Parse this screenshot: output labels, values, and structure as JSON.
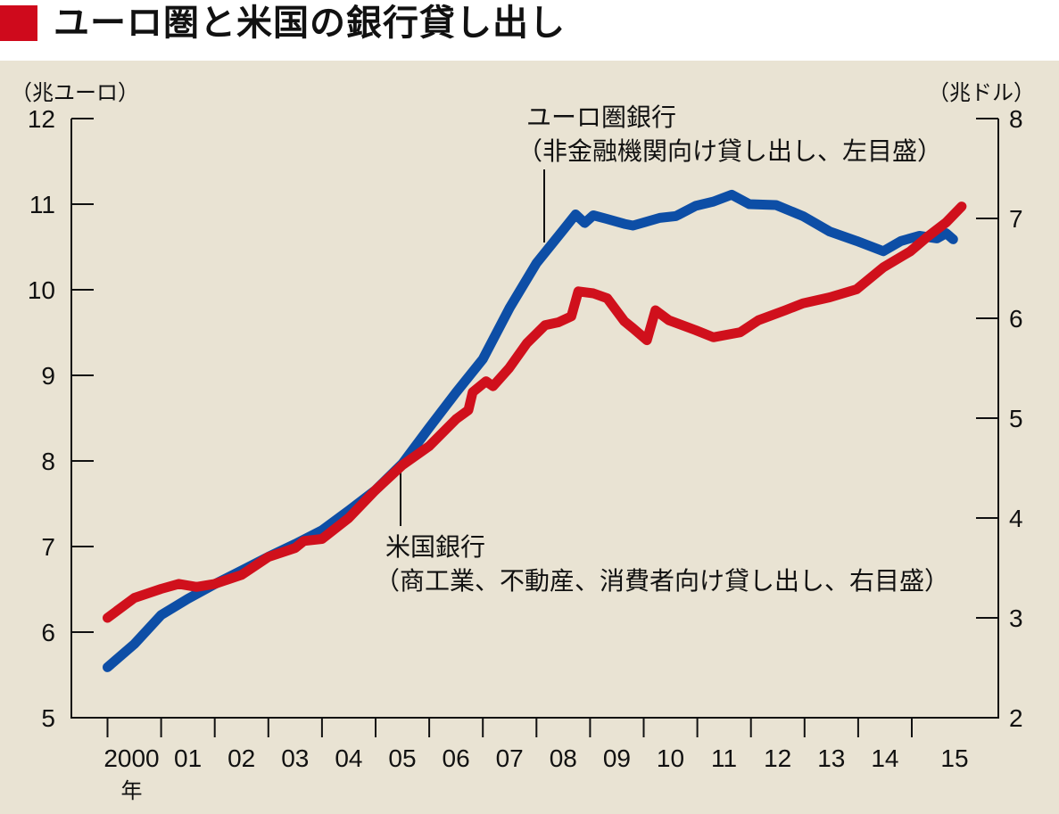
{
  "title": "ユーロ圏と米国の銀行貸し出し",
  "colors": {
    "accent": "#cf0a1c",
    "background": "#e9e3d3",
    "euro": "#0d4ea6",
    "us": "#d0101c"
  },
  "chart_data": {
    "type": "line",
    "title": "ユーロ圏と米国の銀行貸し出し",
    "xlabel": "年",
    "left_axis": {
      "unit_label": "（兆ユーロ）",
      "ylim": [
        5,
        12
      ],
      "ticks": [
        "5",
        "6",
        "7",
        "8",
        "9",
        "10",
        "11",
        "12"
      ]
    },
    "right_axis": {
      "unit_label": "（兆ドル）",
      "ylim": [
        2,
        8
      ],
      "ticks": [
        "2",
        "3",
        "4",
        "5",
        "6",
        "7",
        "8"
      ]
    },
    "x_ticks": [
      "2000",
      "01",
      "02",
      "03",
      "04",
      "05",
      "06",
      "07",
      "08",
      "09",
      "10",
      "11",
      "12",
      "13",
      "14",
      "15"
    ],
    "x_tick_suffix": "年",
    "xlim": [
      2000,
      2016.65
    ],
    "grid": false,
    "series": [
      {
        "name": "ユーロ圏銀行",
        "label_detail": "（非金融機関向け貸し出し、左目盛）",
        "axis": "left",
        "color": "#0d4ea6",
        "points": [
          [
            2000.0,
            5.59
          ],
          [
            2000.5,
            5.86
          ],
          [
            2001.0,
            6.2
          ],
          [
            2001.5,
            6.39
          ],
          [
            2002.0,
            6.56
          ],
          [
            2002.5,
            6.72
          ],
          [
            2003.0,
            6.88
          ],
          [
            2003.5,
            7.03
          ],
          [
            2004.0,
            7.19
          ],
          [
            2004.5,
            7.42
          ],
          [
            2005.0,
            7.66
          ],
          [
            2005.5,
            7.97
          ],
          [
            2006.0,
            8.39
          ],
          [
            2006.5,
            8.8
          ],
          [
            2007.0,
            9.19
          ],
          [
            2007.5,
            9.79
          ],
          [
            2008.0,
            10.31
          ],
          [
            2008.5,
            10.7
          ],
          [
            2008.73,
            10.88
          ],
          [
            2008.9,
            10.78
          ],
          [
            2009.06,
            10.87
          ],
          [
            2009.3,
            10.83
          ],
          [
            2009.64,
            10.77
          ],
          [
            2009.8,
            10.75
          ],
          [
            2010.3,
            10.84
          ],
          [
            2010.6,
            10.86
          ],
          [
            2010.97,
            10.98
          ],
          [
            2011.3,
            11.03
          ],
          [
            2011.64,
            11.11
          ],
          [
            2011.97,
            11.0
          ],
          [
            2012.47,
            10.99
          ],
          [
            2012.97,
            10.86
          ],
          [
            2013.47,
            10.68
          ],
          [
            2013.97,
            10.57
          ],
          [
            2014.47,
            10.45
          ],
          [
            2014.8,
            10.57
          ],
          [
            2015.14,
            10.63
          ],
          [
            2015.47,
            10.6
          ],
          [
            2015.64,
            10.66
          ],
          [
            2015.77,
            10.59
          ]
        ]
      },
      {
        "name": "米国銀行",
        "label_detail": "（商工業、不動産、消費者向け貸し出し、右目盛）",
        "axis": "right",
        "color": "#d0101c",
        "points": [
          [
            2000.0,
            3.0
          ],
          [
            2000.5,
            3.2
          ],
          [
            2001.0,
            3.29
          ],
          [
            2001.33,
            3.34
          ],
          [
            2001.66,
            3.31
          ],
          [
            2002.0,
            3.34
          ],
          [
            2002.5,
            3.43
          ],
          [
            2003.0,
            3.61
          ],
          [
            2003.5,
            3.7
          ],
          [
            2003.66,
            3.77
          ],
          [
            2004.0,
            3.79
          ],
          [
            2004.5,
            4.0
          ],
          [
            2005.0,
            4.28
          ],
          [
            2005.5,
            4.53
          ],
          [
            2006.0,
            4.72
          ],
          [
            2006.5,
            4.99
          ],
          [
            2006.73,
            5.08
          ],
          [
            2006.81,
            5.26
          ],
          [
            2007.06,
            5.37
          ],
          [
            2007.19,
            5.32
          ],
          [
            2007.49,
            5.5
          ],
          [
            2007.82,
            5.75
          ],
          [
            2008.16,
            5.93
          ],
          [
            2008.41,
            5.96
          ],
          [
            2008.65,
            6.02
          ],
          [
            2008.78,
            6.27
          ],
          [
            2009.06,
            6.25
          ],
          [
            2009.32,
            6.2
          ],
          [
            2009.64,
            5.97
          ],
          [
            2009.8,
            5.9
          ],
          [
            2010.06,
            5.78
          ],
          [
            2010.22,
            6.08
          ],
          [
            2010.47,
            5.98
          ],
          [
            2010.97,
            5.88
          ],
          [
            2011.3,
            5.81
          ],
          [
            2011.8,
            5.86
          ],
          [
            2012.14,
            5.98
          ],
          [
            2012.64,
            6.08
          ],
          [
            2012.97,
            6.15
          ],
          [
            2013.47,
            6.21
          ],
          [
            2013.97,
            6.29
          ],
          [
            2014.47,
            6.51
          ],
          [
            2014.97,
            6.67
          ],
          [
            2015.3,
            6.82
          ],
          [
            2015.64,
            6.96
          ],
          [
            2015.93,
            7.12
          ]
        ]
      }
    ]
  }
}
